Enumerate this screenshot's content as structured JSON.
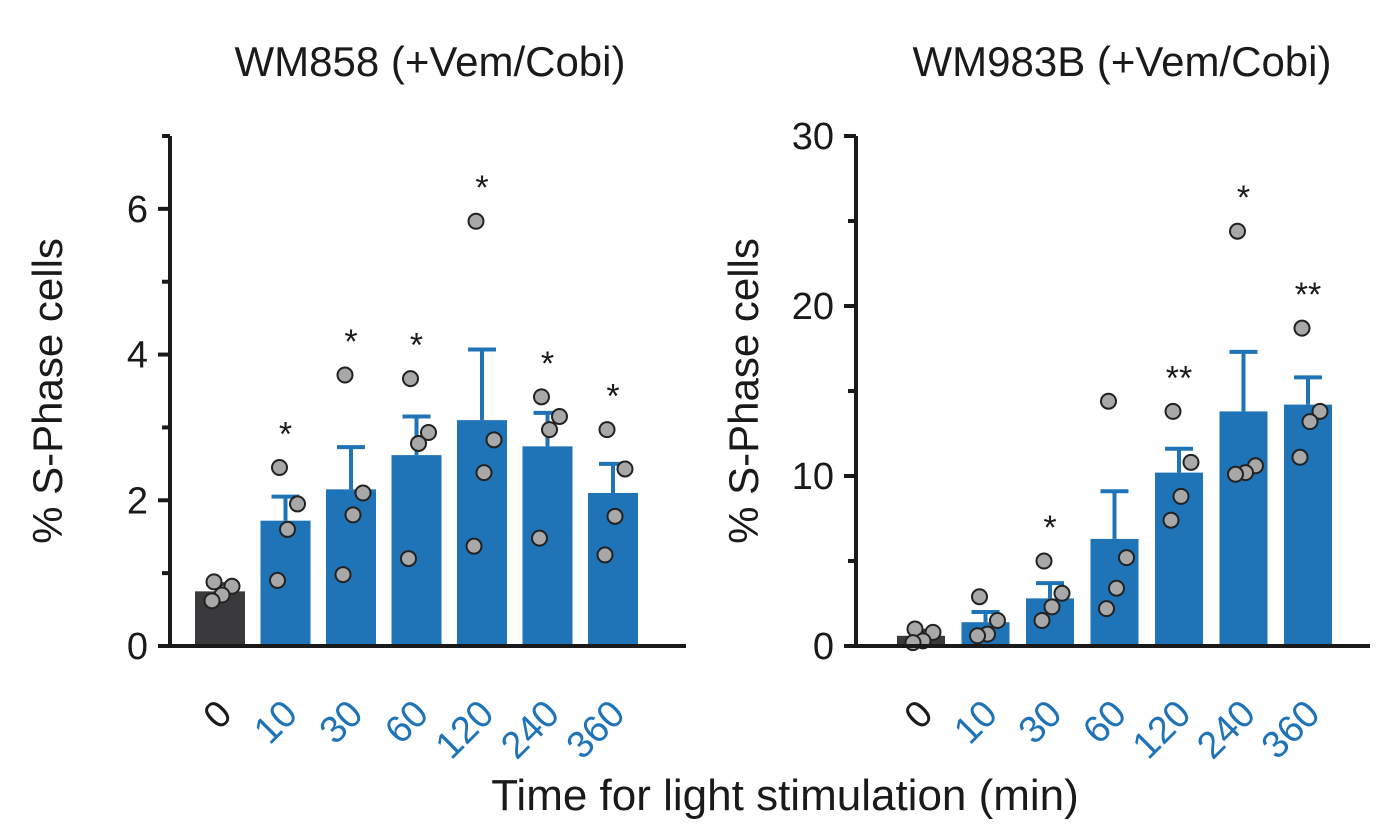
{
  "chart_data": [
    {
      "type": "bar",
      "title": "WM858 (+Vem/Cobi)",
      "ylabel": "% S-Phase cells",
      "xlabel": "Time for light stimulation (min)",
      "ylim": [
        0,
        7
      ],
      "yticks": [
        0,
        2,
        4,
        6
      ],
      "minor_yticks": [
        1,
        3,
        5,
        7
      ],
      "categories": [
        "0",
        "10",
        "30",
        "60",
        "120",
        "240",
        "360"
      ],
      "values": [
        0.75,
        1.72,
        2.15,
        2.62,
        3.1,
        2.74,
        2.1
      ],
      "errors": [
        0.1,
        0.33,
        0.58,
        0.53,
        0.97,
        0.46,
        0.4
      ],
      "points": [
        [
          0.88,
          0.82,
          0.7,
          0.62
        ],
        [
          2.45,
          1.95,
          1.6,
          0.9
        ],
        [
          3.72,
          2.1,
          1.8,
          0.98
        ],
        [
          3.67,
          2.93,
          2.78,
          1.2
        ],
        [
          5.83,
          2.83,
          2.38,
          1.37
        ],
        [
          3.42,
          3.15,
          2.97,
          1.48
        ],
        [
          2.97,
          2.43,
          1.78,
          1.25
        ]
      ],
      "significance": [
        "",
        "*",
        "*",
        "*",
        "*",
        "*",
        "*"
      ],
      "bar_colors": [
        "#3a3a3c",
        "#1f73b7",
        "#1f73b7",
        "#1f73b7",
        "#1f73b7",
        "#1f73b7",
        "#1f73b7"
      ],
      "tick_colors": [
        "#1a1a1a",
        "#1f73b7",
        "#1f73b7",
        "#1f73b7",
        "#1f73b7",
        "#1f73b7",
        "#1f73b7"
      ]
    },
    {
      "type": "bar",
      "title": "WM983B (+Vem/Cobi)",
      "ylabel": "% S-Phase cells",
      "xlabel": "Time for light stimulation (min)",
      "ylim": [
        0,
        30
      ],
      "yticks": [
        0,
        10,
        20,
        30
      ],
      "minor_yticks": [
        5,
        15,
        25
      ],
      "categories": [
        "0",
        "10",
        "30",
        "60",
        "120",
        "240",
        "360"
      ],
      "values": [
        0.6,
        1.4,
        2.8,
        6.3,
        10.2,
        13.8,
        14.2
      ],
      "errors": [
        0.3,
        0.6,
        0.9,
        2.8,
        1.4,
        3.5,
        1.6
      ],
      "points": [
        [
          1.0,
          0.8,
          0.3,
          0.2
        ],
        [
          2.9,
          1.5,
          0.7,
          0.6
        ],
        [
          5.0,
          3.1,
          2.3,
          1.5
        ],
        [
          14.4,
          5.2,
          3.4,
          2.2
        ],
        [
          13.8,
          10.8,
          8.8,
          7.4
        ],
        [
          24.4,
          10.6,
          10.2,
          10.1
        ],
        [
          18.7,
          13.8,
          13.2,
          11.1
        ]
      ],
      "significance": [
        "",
        "",
        "*",
        "",
        "**",
        "*",
        "**"
      ],
      "bar_colors": [
        "#3a3a3c",
        "#1f73b7",
        "#1f73b7",
        "#1f73b7",
        "#1f73b7",
        "#1f73b7",
        "#1f73b7"
      ],
      "tick_colors": [
        "#1a1a1a",
        "#1f73b7",
        "#1f73b7",
        "#1f73b7",
        "#1f73b7",
        "#1f73b7",
        "#1f73b7"
      ]
    }
  ],
  "shared_xlabel": "Time for light stimulation (min)",
  "colors": {
    "accent": "#1f73b7",
    "control": "#3a3a3c",
    "point_fill": "#a8a8a8",
    "axis": "#1a1a1a"
  }
}
